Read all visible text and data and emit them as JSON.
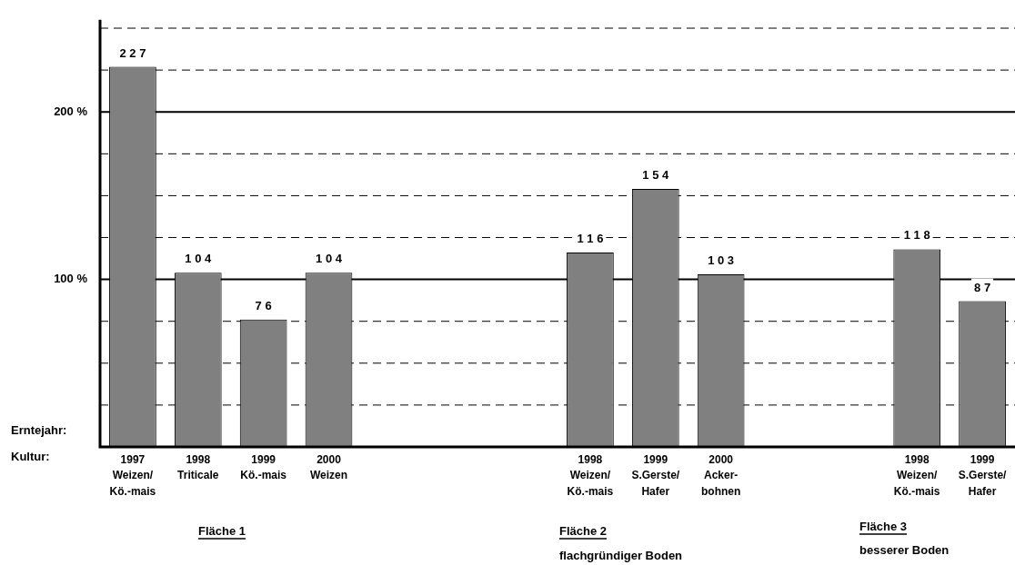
{
  "chart_data": {
    "type": "bar",
    "categories": [
      "1997\nWeizen/\nKö.-mais",
      "1998\nTriticale",
      "1999\nKö.-mais",
      "2000\nWeizen",
      null,
      null,
      null,
      "1998\nWeizen/\nKö.-mais",
      "1999\nS.Gerste/\nHafer",
      "2000\nAcker-\nbohnen",
      null,
      null,
      "1998\nWeizen/\nKö.-mais",
      "1999\nS.Gerste/\nHafer"
    ],
    "values": [
      227,
      104,
      76,
      104,
      null,
      null,
      null,
      116,
      154,
      103,
      null,
      null,
      118,
      87
    ],
    "color": "#808080",
    "ylim": [
      0,
      255
    ],
    "yticks": [
      {
        "value": 25,
        "label": null
      },
      {
        "value": 50,
        "label": null
      },
      {
        "value": 75,
        "label": null
      },
      {
        "value": 100,
        "label": "100 %"
      },
      {
        "value": 125,
        "label": null
      },
      {
        "value": 150,
        "label": null
      },
      {
        "value": 175,
        "label": null
      },
      {
        "value": 200,
        "label": "200 %"
      },
      {
        "value": 225,
        "label": null
      },
      {
        "value": 250,
        "label": null
      }
    ],
    "grid": true,
    "data_labels": true,
    "annotations": [
      "Erntejahr:",
      "Kultur:",
      "Fläche 1",
      "Fläche 2",
      "flachgründiger Boden",
      "Fläche 3",
      "besserer Boden"
    ]
  }
}
